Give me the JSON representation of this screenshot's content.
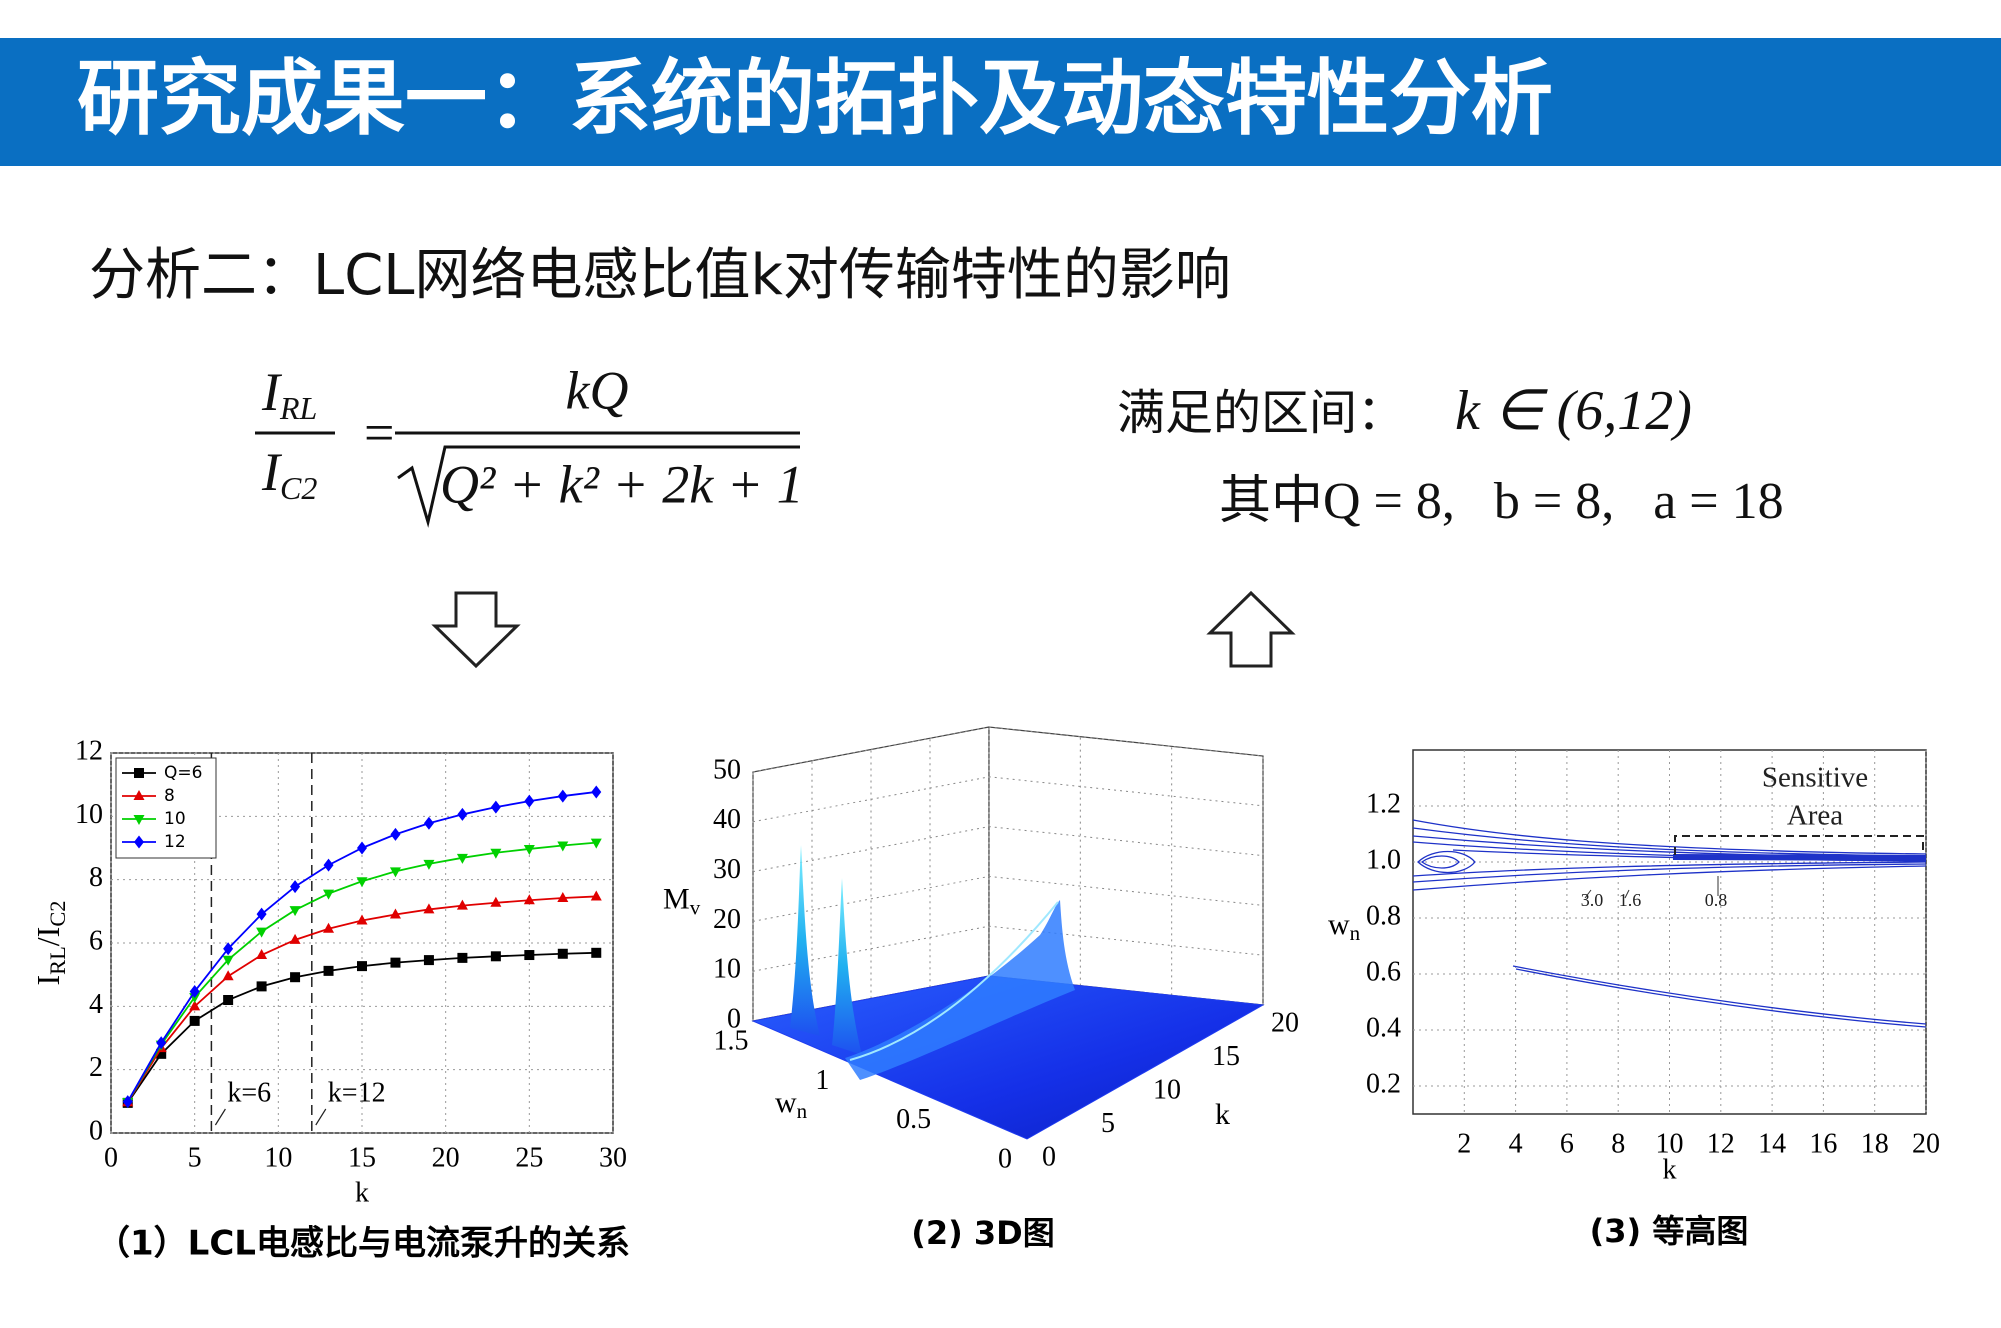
{
  "header": {
    "title": "研究成果一：系统的拓扑及动态特性分析"
  },
  "subtitle": "分析二：LCL网络电感比值k对传输特性的影响",
  "formula": {
    "lhs_num": "I",
    "lhs_num_sub": "RL",
    "lhs_den": "I",
    "lhs_den_sub": "C2",
    "equals": "=",
    "rhs_num": "kQ",
    "rhs_den": "Q² + k² + 2k + 1"
  },
  "condition": {
    "label": "满足的区间：",
    "range": "k ∈ (6,12)",
    "params": "其中Q = 8,   b = 8,   a = 18"
  },
  "chart_data": [
    {
      "type": "line",
      "xlabel": "k",
      "ylabel": [
        "I",
        "RL",
        "/I",
        "C2"
      ],
      "x": [
        1,
        3,
        5,
        7,
        9,
        11,
        13,
        15,
        17,
        19,
        21,
        23,
        25,
        27,
        29
      ],
      "series": [
        {
          "name": "Q=6",
          "color": "#000000",
          "marker": "square",
          "values": [
            0.95,
            2.5,
            3.54,
            4.2,
            4.63,
            4.92,
            5.12,
            5.27,
            5.38,
            5.46,
            5.53,
            5.58,
            5.62,
            5.66,
            5.69
          ]
        },
        {
          "name": "8",
          "color": "#e00000",
          "marker": "triangle-up",
          "values": [
            0.97,
            2.68,
            4.0,
            4.95,
            5.62,
            6.1,
            6.45,
            6.71,
            6.9,
            7.06,
            7.18,
            7.27,
            7.35,
            7.42,
            7.47
          ]
        },
        {
          "name": "10",
          "color": "#00d000",
          "marker": "triangle-down",
          "values": [
            0.98,
            2.79,
            4.29,
            5.47,
            6.36,
            7.04,
            7.56,
            7.95,
            8.26,
            8.5,
            8.69,
            8.85,
            8.97,
            9.08,
            9.17
          ]
        },
        {
          "name": "12",
          "color": "#0000ff",
          "marker": "diamond",
          "values": [
            0.99,
            2.85,
            4.47,
            5.82,
            6.91,
            7.78,
            8.46,
            9.0,
            9.43,
            9.78,
            10.06,
            10.29,
            10.48,
            10.64,
            10.77
          ]
        }
      ],
      "xlim": [
        0,
        30
      ],
      "xticks": [
        0,
        5,
        10,
        15,
        20,
        25,
        30
      ],
      "ylim": [
        0,
        12
      ],
      "yticks": [
        0,
        2,
        4,
        6,
        8,
        10,
        12
      ],
      "grid": true,
      "legend": "upper left",
      "annotations": [
        {
          "x": 6,
          "text": "k=6"
        },
        {
          "x": 12,
          "text": "k=12"
        }
      ],
      "caption": "（1）LCL电感比与电流泵升的关系"
    },
    {
      "type": "surface3d",
      "xlabel": [
        "w",
        "n"
      ],
      "ylabel": "k",
      "zlabel": [
        "M",
        "v"
      ],
      "xlim": [
        0,
        1.5
      ],
      "xticks": [
        0,
        0.5,
        1,
        1.5
      ],
      "ylim": [
        0,
        20
      ],
      "yticks": [
        0,
        5,
        10,
        15,
        20
      ],
      "zlim": [
        0,
        50
      ],
      "zticks": [
        0,
        10,
        20,
        30,
        40,
        50
      ],
      "grid": true,
      "color": "#1f3cf0",
      "caption": "(2) 3D图"
    },
    {
      "type": "contour",
      "xlabel": "k",
      "ylabel": [
        "w",
        "n"
      ],
      "xlim": [
        0,
        20
      ],
      "xticks": [
        2,
        4,
        6,
        8,
        10,
        12,
        14,
        16,
        18,
        20
      ],
      "ylim": [
        0.1,
        1.4
      ],
      "yticks": [
        0.2,
        0.4,
        0.6,
        0.8,
        {
          "value": 1,
          "label": "1.0"
        },
        1.2
      ],
      "grid": true,
      "color": "#1e32c8",
      "contour_labels": [
        {
          "value": 3,
          "label": "3.0"
        },
        1.6,
        0.8
      ],
      "annotation": [
        "Sensitive",
        "Area"
      ],
      "caption": "(3) 等高图"
    }
  ]
}
